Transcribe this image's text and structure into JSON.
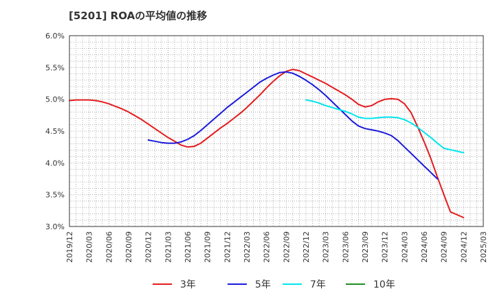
{
  "chart_data": {
    "type": "line",
    "title": "[5201]  ROAの平均値の推移",
    "xlabel": "",
    "ylabel": "",
    "ylim": [
      3.0,
      6.0
    ],
    "y_ticks": [
      "3.0%",
      "3.5%",
      "4.0%",
      "4.5%",
      "5.0%",
      "5.5%",
      "6.0%"
    ],
    "x_ticks": [
      "2019/12",
      "2020/03",
      "2020/06",
      "2020/09",
      "2020/12",
      "2021/03",
      "2021/06",
      "2021/09",
      "2021/12",
      "2022/03",
      "2022/06",
      "2022/09",
      "2022/12",
      "2023/03",
      "2023/06",
      "2023/09",
      "2023/12",
      "2024/03",
      "2024/06",
      "2024/09",
      "2024/12",
      "2025/03"
    ],
    "grid": true,
    "legend_position": "bottom",
    "series": [
      {
        "name": "3年",
        "color": "#e41a1c",
        "points": [
          [
            "2019/12",
            4.98
          ],
          [
            "2020/01",
            4.99
          ],
          [
            "2020/02",
            4.99
          ],
          [
            "2020/03",
            4.99
          ],
          [
            "2020/04",
            4.98
          ],
          [
            "2020/05",
            4.96
          ],
          [
            "2020/06",
            4.93
          ],
          [
            "2020/07",
            4.89
          ],
          [
            "2020/08",
            4.85
          ],
          [
            "2020/09",
            4.8
          ],
          [
            "2020/10",
            4.74
          ],
          [
            "2020/11",
            4.68
          ],
          [
            "2020/12",
            4.61
          ],
          [
            "2021/01",
            4.54
          ],
          [
            "2021/02",
            4.47
          ],
          [
            "2021/03",
            4.4
          ],
          [
            "2021/04",
            4.34
          ],
          [
            "2021/05",
            4.28
          ],
          [
            "2021/06",
            4.25
          ],
          [
            "2021/07",
            4.26
          ],
          [
            "2021/08",
            4.31
          ],
          [
            "2021/09",
            4.39
          ],
          [
            "2021/10",
            4.47
          ],
          [
            "2021/11",
            4.55
          ],
          [
            "2021/12",
            4.62
          ],
          [
            "2022/01",
            4.7
          ],
          [
            "2022/02",
            4.78
          ],
          [
            "2022/03",
            4.87
          ],
          [
            "2022/04",
            4.97
          ],
          [
            "2022/05",
            5.07
          ],
          [
            "2022/06",
            5.18
          ],
          [
            "2022/07",
            5.28
          ],
          [
            "2022/08",
            5.37
          ],
          [
            "2022/09",
            5.44
          ],
          [
            "2022/10",
            5.47
          ],
          [
            "2022/11",
            5.45
          ],
          [
            "2022/12",
            5.4
          ],
          [
            "2023/01",
            5.35
          ],
          [
            "2023/02",
            5.3
          ],
          [
            "2023/03",
            5.25
          ],
          [
            "2023/04",
            5.19
          ],
          [
            "2023/05",
            5.13
          ],
          [
            "2023/06",
            5.07
          ],
          [
            "2023/07",
            5.0
          ],
          [
            "2023/08",
            4.92
          ],
          [
            "2023/09",
            4.88
          ],
          [
            "2023/10",
            4.9
          ],
          [
            "2023/11",
            4.96
          ],
          [
            "2023/12",
            5.0
          ],
          [
            "2024/01",
            5.01
          ],
          [
            "2024/02",
            5.0
          ],
          [
            "2024/03",
            4.93
          ],
          [
            "2024/04",
            4.79
          ],
          [
            "2024/05",
            4.57
          ],
          [
            "2024/06",
            4.33
          ],
          [
            "2024/07",
            4.07
          ],
          [
            "2024/08",
            3.78
          ],
          [
            "2024/09",
            3.5
          ],
          [
            "2024/10",
            3.23
          ],
          [
            "2024/12",
            3.14
          ]
        ]
      },
      {
        "name": "5年",
        "color": "#1a1adb",
        "points": [
          [
            "2020/12",
            4.36
          ],
          [
            "2021/01",
            4.34
          ],
          [
            "2021/02",
            4.32
          ],
          [
            "2021/03",
            4.31
          ],
          [
            "2021/04",
            4.31
          ],
          [
            "2021/05",
            4.33
          ],
          [
            "2021/06",
            4.37
          ],
          [
            "2021/07",
            4.43
          ],
          [
            "2021/08",
            4.51
          ],
          [
            "2021/09",
            4.6
          ],
          [
            "2021/10",
            4.69
          ],
          [
            "2021/11",
            4.78
          ],
          [
            "2021/12",
            4.87
          ],
          [
            "2022/01",
            4.95
          ],
          [
            "2022/02",
            5.03
          ],
          [
            "2022/03",
            5.11
          ],
          [
            "2022/04",
            5.19
          ],
          [
            "2022/05",
            5.27
          ],
          [
            "2022/06",
            5.33
          ],
          [
            "2022/07",
            5.38
          ],
          [
            "2022/08",
            5.42
          ],
          [
            "2022/09",
            5.43
          ],
          [
            "2022/10",
            5.41
          ],
          [
            "2022/11",
            5.36
          ],
          [
            "2022/12",
            5.3
          ],
          [
            "2023/01",
            5.23
          ],
          [
            "2023/02",
            5.15
          ],
          [
            "2023/03",
            5.06
          ],
          [
            "2023/04",
            4.96
          ],
          [
            "2023/05",
            4.86
          ],
          [
            "2023/06",
            4.76
          ],
          [
            "2023/07",
            4.66
          ],
          [
            "2023/08",
            4.58
          ],
          [
            "2023/09",
            4.54
          ],
          [
            "2023/10",
            4.52
          ],
          [
            "2023/11",
            4.5
          ],
          [
            "2023/12",
            4.47
          ],
          [
            "2024/01",
            4.43
          ],
          [
            "2024/02",
            4.35
          ],
          [
            "2024/03",
            4.25
          ],
          [
            "2024/04",
            4.15
          ],
          [
            "2024/05",
            4.05
          ],
          [
            "2024/06",
            3.95
          ],
          [
            "2024/07",
            3.85
          ],
          [
            "2024/08",
            3.75
          ]
        ]
      },
      {
        "name": "7年",
        "color": "#00e5ee",
        "points": [
          [
            "2022/12",
            4.99
          ],
          [
            "2023/01",
            4.97
          ],
          [
            "2023/02",
            4.94
          ],
          [
            "2023/03",
            4.9
          ],
          [
            "2023/04",
            4.87
          ],
          [
            "2023/05",
            4.84
          ],
          [
            "2023/06",
            4.81
          ],
          [
            "2023/07",
            4.77
          ],
          [
            "2023/08",
            4.72
          ],
          [
            "2023/09",
            4.7
          ],
          [
            "2023/10",
            4.7
          ],
          [
            "2023/11",
            4.71
          ],
          [
            "2023/12",
            4.72
          ],
          [
            "2024/01",
            4.72
          ],
          [
            "2024/02",
            4.71
          ],
          [
            "2024/03",
            4.68
          ],
          [
            "2024/04",
            4.63
          ],
          [
            "2024/05",
            4.56
          ],
          [
            "2024/06",
            4.48
          ],
          [
            "2024/07",
            4.4
          ],
          [
            "2024/08",
            4.31
          ],
          [
            "2024/09",
            4.23
          ],
          [
            "2024/12",
            4.16
          ]
        ]
      },
      {
        "name": "10年",
        "color": "#228b22",
        "points": []
      }
    ]
  }
}
